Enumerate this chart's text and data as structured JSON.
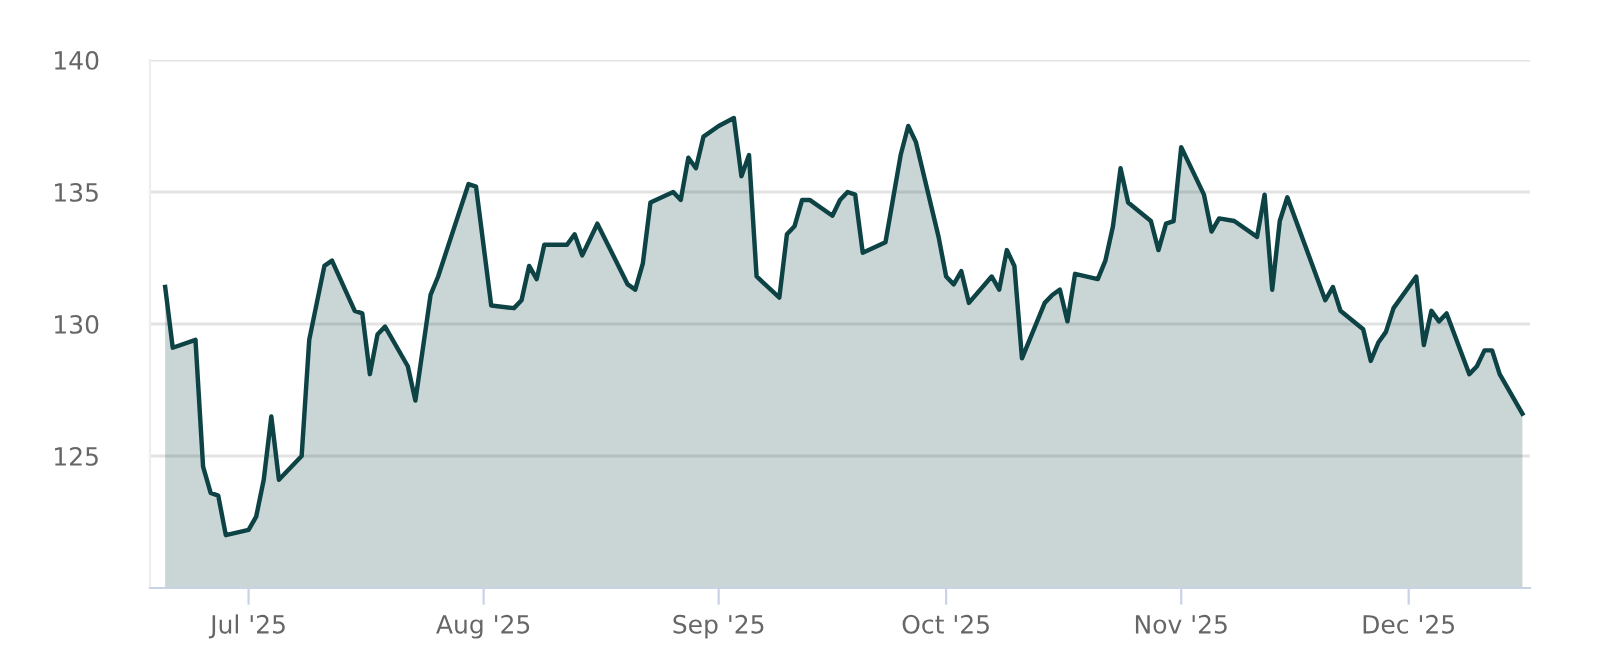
{
  "chart_data": {
    "type": "area",
    "x": [
      "2025-06-20",
      "2025-06-21",
      "2025-06-24",
      "2025-06-25",
      "2025-06-26",
      "2025-06-27",
      "2025-06-28",
      "2025-07-01",
      "2025-07-02",
      "2025-07-03",
      "2025-07-04",
      "2025-07-05",
      "2025-07-08",
      "2025-07-09",
      "2025-07-11",
      "2025-07-12",
      "2025-07-15",
      "2025-07-16",
      "2025-07-17",
      "2025-07-18",
      "2025-07-19",
      "2025-07-22",
      "2025-07-23",
      "2025-07-25",
      "2025-07-26",
      "2025-07-30",
      "2025-07-31",
      "2025-08-02",
      "2025-08-05",
      "2025-08-06",
      "2025-08-07",
      "2025-08-08",
      "2025-08-09",
      "2025-08-12",
      "2025-08-13",
      "2025-08-14",
      "2025-08-16",
      "2025-08-20",
      "2025-08-21",
      "2025-08-22",
      "2025-08-23",
      "2025-08-26",
      "2025-08-27",
      "2025-08-28",
      "2025-08-29",
      "2025-08-30",
      "2025-09-01",
      "2025-09-03",
      "2025-09-04",
      "2025-09-05",
      "2025-09-06",
      "2025-09-09",
      "2025-09-10",
      "2025-09-11",
      "2025-09-12",
      "2025-09-13",
      "2025-09-16",
      "2025-09-17",
      "2025-09-18",
      "2025-09-19",
      "2025-09-20",
      "2025-09-23",
      "2025-09-25",
      "2025-09-26",
      "2025-09-27",
      "2025-09-30",
      "2025-10-01",
      "2025-10-02",
      "2025-10-03",
      "2025-10-04",
      "2025-10-07",
      "2025-10-08",
      "2025-10-09",
      "2025-10-10",
      "2025-10-11",
      "2025-10-14",
      "2025-10-15",
      "2025-10-16",
      "2025-10-17",
      "2025-10-18",
      "2025-10-21",
      "2025-10-22",
      "2025-10-23",
      "2025-10-24",
      "2025-10-25",
      "2025-10-28",
      "2025-10-29",
      "2025-10-30",
      "2025-10-31",
      "2025-11-01",
      "2025-11-04",
      "2025-11-05",
      "2025-11-06",
      "2025-11-08",
      "2025-11-11",
      "2025-11-12",
      "2025-11-13",
      "2025-11-14",
      "2025-11-15",
      "2025-11-20",
      "2025-11-21",
      "2025-11-22",
      "2025-11-25",
      "2025-11-26",
      "2025-11-27",
      "2025-11-28",
      "2025-11-29",
      "2025-12-02",
      "2025-12-03",
      "2025-12-04",
      "2025-12-05",
      "2025-12-06",
      "2025-12-09",
      "2025-12-10",
      "2025-12-11",
      "2025-12-12",
      "2025-12-13",
      "2025-12-16"
    ],
    "series": [
      {
        "color": "#0e4346",
        "values": [
          131.4,
          129.1,
          129.4,
          124.6,
          123.6,
          123.5,
          122.0,
          122.2,
          122.7,
          124.1,
          126.5,
          124.1,
          125.0,
          129.4,
          132.2,
          132.4,
          130.5,
          130.4,
          128.1,
          129.6,
          129.9,
          128.4,
          127.1,
          131.1,
          131.8,
          135.3,
          135.2,
          130.7,
          130.6,
          130.9,
          132.2,
          131.7,
          133.0,
          133.0,
          133.4,
          132.6,
          133.8,
          131.5,
          131.3,
          132.3,
          134.6,
          135.0,
          134.7,
          136.3,
          135.9,
          137.1,
          137.5,
          137.8,
          135.6,
          136.4,
          131.8,
          131.0,
          133.4,
          133.7,
          134.7,
          134.7,
          134.1,
          134.7,
          135.0,
          134.9,
          132.7,
          133.1,
          136.4,
          137.5,
          136.9,
          133.3,
          131.8,
          131.5,
          132.0,
          130.8,
          131.8,
          131.3,
          132.8,
          132.2,
          128.7,
          130.8,
          131.1,
          131.3,
          130.1,
          131.9,
          131.7,
          132.4,
          133.7,
          135.9,
          134.6,
          133.9,
          132.8,
          133.8,
          133.9,
          136.7,
          134.9,
          133.5,
          134.0,
          133.9,
          133.3,
          134.9,
          131.3,
          133.9,
          134.8,
          130.9,
          131.4,
          130.5,
          129.8,
          128.6,
          129.3,
          129.7,
          130.6,
          131.8,
          129.2,
          130.5,
          130.1,
          130.4,
          128.1,
          128.4,
          129.0,
          129.0,
          128.1,
          126.6
        ]
      }
    ],
    "xlim": [
      "2025-06-18",
      "2025-12-17"
    ],
    "xticks": [
      {
        "value": "2025-07-01",
        "label": "Jul '25"
      },
      {
        "value": "2025-08-01",
        "label": "Aug '25"
      },
      {
        "value": "2025-09-01",
        "label": "Sep '25"
      },
      {
        "value": "2025-10-01",
        "label": "Oct '25"
      },
      {
        "value": "2025-11-01",
        "label": "Nov '25"
      },
      {
        "value": "2025-12-01",
        "label": "Dec '25"
      }
    ],
    "ylim": [
      120,
      140
    ],
    "yticks": [
      125,
      130,
      135,
      140
    ],
    "grid": "y"
  }
}
